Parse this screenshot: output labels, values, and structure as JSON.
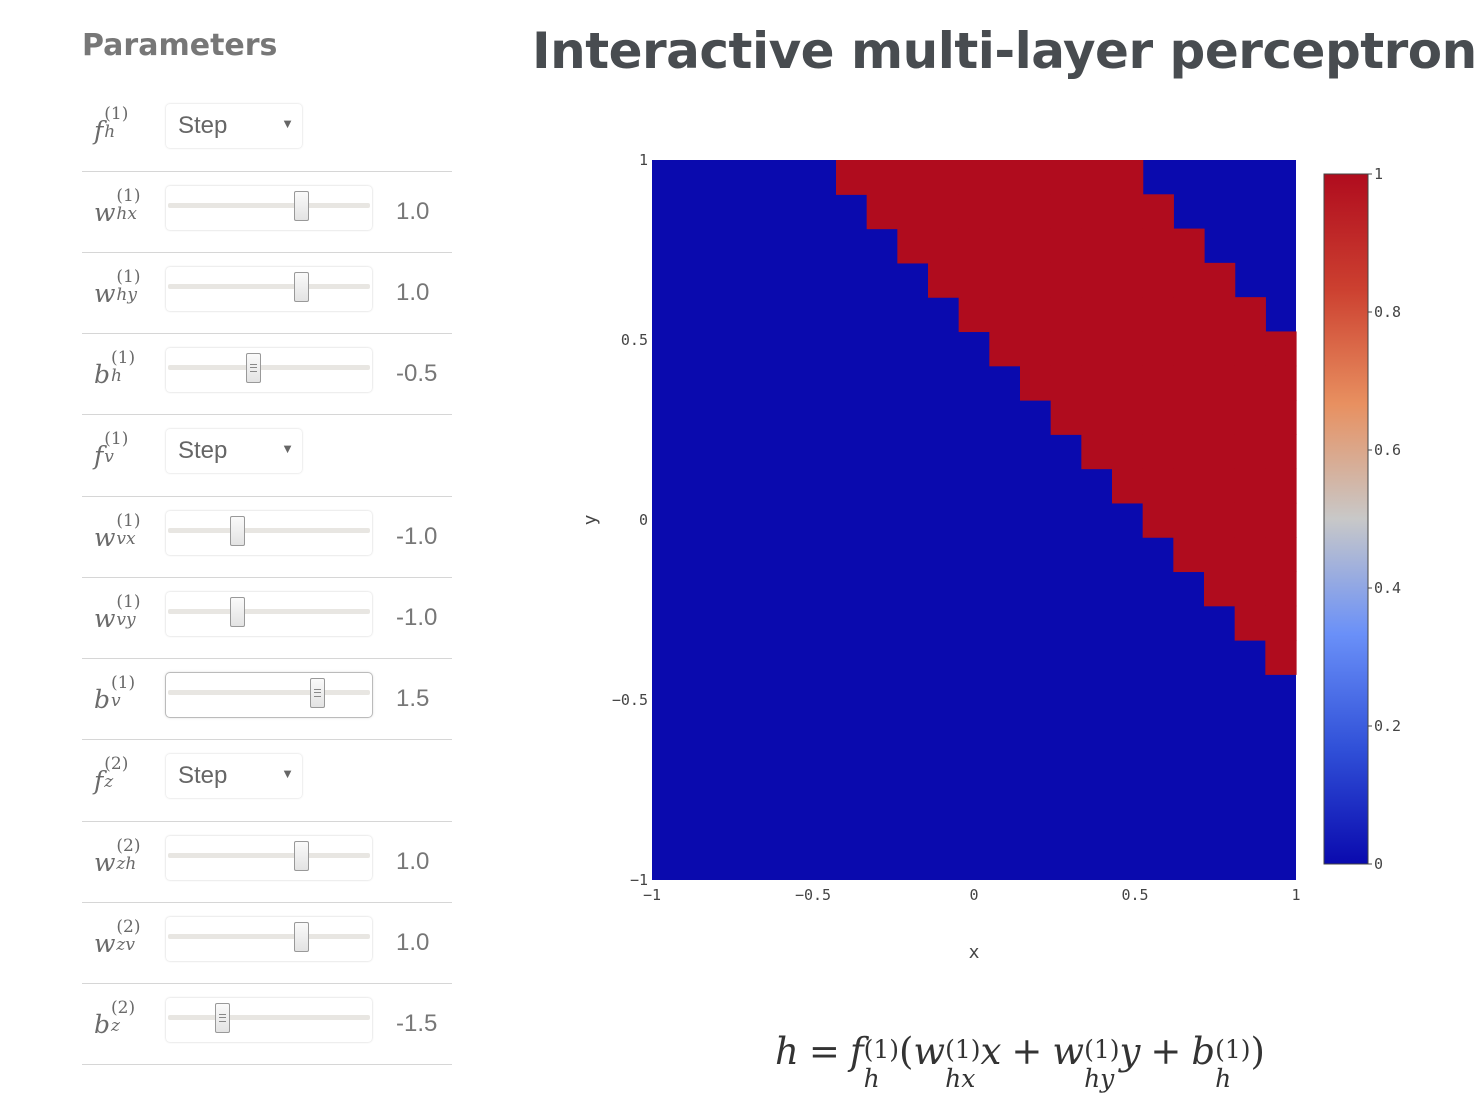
{
  "sidebar": {
    "title": "Parameters"
  },
  "page": {
    "title": "Interactive multi-layer perceptron"
  },
  "params": [
    {
      "id": "fh1",
      "type": "select",
      "base": "f",
      "sup": "(1)",
      "sub": "h",
      "value": "Step"
    },
    {
      "id": "whx1",
      "type": "slider",
      "base": "w",
      "sup": "(1)",
      "sub": "hx",
      "value": "1.0",
      "level": 1.0
    },
    {
      "id": "why1",
      "type": "slider",
      "base": "w",
      "sup": "(1)",
      "sub": "hy",
      "value": "1.0",
      "level": 1.0
    },
    {
      "id": "bh1",
      "type": "slider",
      "base": "b",
      "sup": "(1)",
      "sub": "h",
      "value": "-0.5",
      "level": -0.5
    },
    {
      "id": "fv1",
      "type": "select",
      "base": "f",
      "sup": "(1)",
      "sub": "v",
      "value": "Step"
    },
    {
      "id": "wvx1",
      "type": "slider",
      "base": "w",
      "sup": "(1)",
      "sub": "vx",
      "value": "-1.0",
      "level": -1.0
    },
    {
      "id": "wvy1",
      "type": "slider",
      "base": "w",
      "sup": "(1)",
      "sub": "vy",
      "value": "-1.0",
      "level": -1.0
    },
    {
      "id": "bv1",
      "type": "slider",
      "base": "b",
      "sup": "(1)",
      "sub": "v",
      "value": "1.5",
      "level": 1.5,
      "focused": true
    },
    {
      "id": "fz2",
      "type": "select",
      "base": "f",
      "sup": "(2)",
      "sub": "z",
      "value": "Step"
    },
    {
      "id": "wzh2",
      "type": "slider",
      "base": "w",
      "sup": "(2)",
      "sub": "zh",
      "value": "1.0",
      "level": 1.0
    },
    {
      "id": "wzv2",
      "type": "slider",
      "base": "w",
      "sup": "(2)",
      "sub": "zv",
      "value": "1.0",
      "level": 1.0
    },
    {
      "id": "bz2",
      "type": "slider",
      "base": "b",
      "sup": "(2)",
      "sub": "z",
      "value": "-1.5",
      "level": -1.5
    }
  ],
  "colors": {
    "low": "#0a0aae",
    "high": "#b00c1e"
  },
  "chart_data": {
    "type": "heatmap",
    "xlabel": "x",
    "ylabel": "y",
    "xlim": [
      -1,
      1
    ],
    "ylim": [
      -1,
      1
    ],
    "x_ticks": [
      "−1",
      "−0.5",
      "0",
      "0.5",
      "1"
    ],
    "y_ticks": [
      "−1",
      "−0.5",
      "0",
      "0.5",
      "1"
    ],
    "x_tick_values": [
      -1,
      -0.5,
      0,
      0.5,
      1
    ],
    "y_tick_values": [
      -1,
      -0.5,
      0,
      0.5,
      1
    ],
    "colorbar_ticks": [
      "0",
      "0.2",
      "0.4",
      "0.6",
      "0.8",
      "1"
    ],
    "colorbar_tick_values": [
      0,
      0.2,
      0.4,
      0.6,
      0.8,
      1
    ],
    "colorscale": [
      "#0a0aae",
      "#3050d8",
      "#6a90f8",
      "#c8c8c8",
      "#e89060",
      "#cc4030",
      "#b00c1e"
    ],
    "grid_cells_per_axis": 21,
    "rule": "z = step(step(x + y - 0.5) + step(-x - y + 1.5) - 1.5)",
    "high_region": "0.5 < x + y < 1.5",
    "values_range": [
      0,
      1
    ]
  },
  "formula": {
    "lhs": "h",
    "eq": "=",
    "f": "f",
    "f_sup": "(1)",
    "f_sub": "h",
    "open": "(",
    "w1": "w",
    "w1_sup": "(1)",
    "w1_sub": "hx",
    "v1": "x",
    "plus1": "+",
    "w2": "w",
    "w2_sup": "(1)",
    "w2_sub": "hy",
    "v2": "y",
    "plus2": "+",
    "b": "b",
    "b_sup": "(1)",
    "b_sub": "h",
    "close": ")"
  }
}
